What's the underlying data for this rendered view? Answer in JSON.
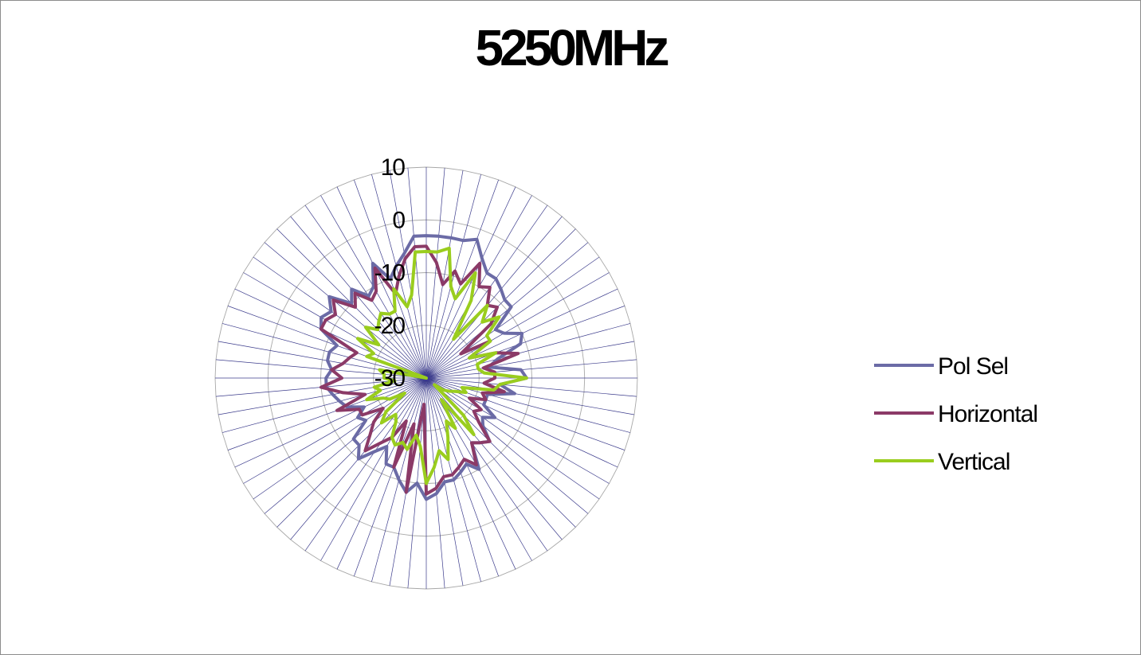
{
  "chart_data": {
    "type": "radar",
    "title": "5250MHz",
    "r_ticks": [
      "10",
      "0",
      "-10",
      "-20",
      "-30"
    ],
    "r_values": [
      10,
      0,
      -10,
      -20,
      -30
    ],
    "rlim": [
      -30,
      10
    ],
    "spokes": 72,
    "grid": true,
    "legend_placement": "right",
    "series": [
      {
        "name": "Pol Sel",
        "color": "#6b6ba6",
        "values": [
          -3,
          -3,
          -3,
          -3,
          -2,
          -5,
          -7,
          -7,
          -8,
          -9,
          -9,
          -14,
          -13,
          -10,
          -11,
          -16,
          -18,
          -12,
          -11,
          -16,
          -13,
          -18,
          -18,
          -18,
          -15,
          -17,
          -16,
          -13,
          -14,
          -15,
          -10,
          -12,
          -11,
          -10,
          -10,
          -8,
          -7,
          -10,
          -8,
          -10,
          -12,
          -12,
          -15,
          -13,
          -10,
          -12,
          -12,
          -16,
          -15,
          -17,
          -14,
          -13,
          -12,
          -11,
          -11,
          -12,
          -11,
          -11,
          -12,
          -8,
          -7,
          -8,
          -6,
          -10,
          -8,
          -11,
          -10,
          -6,
          -10,
          -8,
          -6,
          -3
        ]
      },
      {
        "name": "Horizontal",
        "color": "#8b3a67",
        "values": [
          -5,
          -8,
          -12,
          -9,
          -11,
          -6,
          -10,
          -9,
          -12,
          -11,
          -14,
          -22,
          -16,
          -21,
          -16,
          -12,
          -19,
          -17,
          -17,
          -19,
          -15,
          -19,
          -18,
          -21,
          -18,
          -19,
          -17,
          -13,
          -14,
          -15,
          -11,
          -13,
          -12,
          -11,
          -11,
          -9,
          -8,
          -25,
          -8,
          -21,
          -12,
          -21,
          -17,
          -15,
          -12,
          -15,
          -17,
          -20,
          -16,
          -16,
          -12,
          -18,
          -14,
          -10,
          -14,
          -12,
          -14,
          -15,
          -16,
          -8,
          -8,
          -9,
          -7,
          -11,
          -9,
          -12,
          -11,
          -7,
          -13,
          -10,
          -7,
          -5
        ]
      },
      {
        "name": "Vertical",
        "color": "#9acd1e",
        "values": [
          -6,
          -6,
          -5,
          -12,
          -14,
          -8,
          -13,
          -21,
          -12,
          -15,
          -12,
          -16,
          -16,
          -21,
          -16,
          -20,
          -20,
          -19,
          -11,
          -16,
          -17,
          -23,
          -22,
          -24,
          -25,
          -26,
          -28,
          -20,
          -16,
          -25,
          -19,
          -21,
          -18,
          -14,
          -16,
          -13,
          -10,
          -17,
          -19,
          -16,
          -17,
          -16,
          -17,
          -20,
          -21,
          -18,
          -20,
          -25,
          -22,
          -21,
          -18,
          -21,
          -20,
          -24,
          -22,
          -22,
          -21,
          -30,
          -18,
          -19,
          -15,
          -19,
          -15,
          -17,
          -16,
          -15,
          -16,
          -16,
          -12,
          -16,
          -14,
          -6
        ]
      }
    ]
  }
}
